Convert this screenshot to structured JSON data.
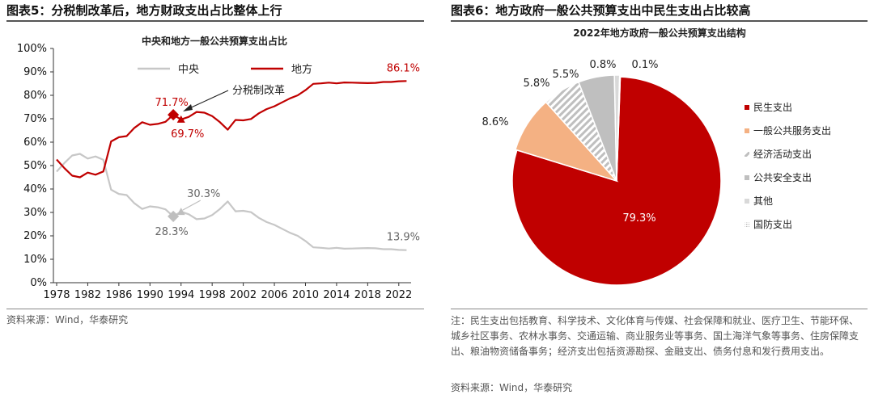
{
  "left": {
    "panel_title": "图表5：分税制改革后，地方财政支出占比整体上行",
    "source": "资料来源：Wind，华泰研究",
    "chart_data": {
      "type": "line",
      "title": "中央和地方一般公共预算支出占比",
      "x": [
        1978,
        1979,
        1980,
        1981,
        1982,
        1983,
        1984,
        1985,
        1986,
        1987,
        1988,
        1989,
        1990,
        1991,
        1992,
        1993,
        1994,
        1995,
        1996,
        1997,
        1998,
        1999,
        2000,
        2001,
        2002,
        2003,
        2004,
        2005,
        2006,
        2007,
        2008,
        2009,
        2010,
        2011,
        2012,
        2013,
        2014,
        2015,
        2016,
        2017,
        2018,
        2019,
        2020,
        2021,
        2022,
        2023
      ],
      "series": [
        {
          "name": "中央",
          "color": "#c7c7c7",
          "values": [
            47.4,
            51.1,
            54.3,
            55.0,
            53.0,
            53.9,
            52.5,
            39.7,
            37.9,
            37.4,
            33.9,
            31.5,
            32.6,
            32.2,
            31.3,
            28.3,
            30.3,
            29.2,
            27.1,
            27.4,
            28.9,
            31.5,
            34.7,
            30.5,
            30.7,
            30.1,
            27.7,
            25.9,
            24.7,
            23.0,
            21.3,
            20.0,
            17.8,
            15.1,
            14.9,
            14.6,
            14.9,
            14.5,
            14.6,
            14.7,
            14.8,
            14.7,
            14.3,
            14.3,
            14.0,
            13.9
          ]
        },
        {
          "name": "地方",
          "color": "#c00000",
          "values": [
            52.6,
            48.9,
            45.7,
            45.0,
            47.0,
            46.1,
            47.5,
            60.3,
            62.1,
            62.6,
            66.1,
            68.5,
            67.4,
            67.8,
            68.7,
            71.7,
            69.7,
            70.8,
            72.9,
            72.6,
            71.1,
            68.5,
            65.3,
            69.5,
            69.3,
            69.9,
            72.3,
            74.1,
            75.3,
            77.0,
            78.7,
            80.0,
            82.2,
            84.9,
            85.1,
            85.4,
            85.1,
            85.5,
            85.4,
            85.3,
            85.2,
            85.3,
            85.7,
            85.7,
            86.0,
            86.1
          ]
        }
      ],
      "ylim": [
        0,
        100
      ],
      "yticks": [
        0,
        10,
        20,
        30,
        40,
        50,
        60,
        70,
        80,
        90,
        100
      ],
      "ytick_labels": [
        "0%",
        "10%",
        "20%",
        "30%",
        "40%",
        "50%",
        "60%",
        "70%",
        "80%",
        "90%",
        "100%"
      ],
      "xticks": [
        1978,
        1982,
        1986,
        1990,
        1994,
        1998,
        2002,
        2006,
        2010,
        2014,
        2018,
        2022
      ],
      "legend_position": "top",
      "annotations": {
        "reform": "分税制改革",
        "local_1993": "71.7%",
        "local_1994": "69.7%",
        "central_1994": "30.3%",
        "central_1993": "28.3%",
        "local_2023": "86.1%",
        "central_2023": "13.9%"
      }
    }
  },
  "right": {
    "panel_title": "图表6：地方政府一般公共预算支出中民生支出占比较高",
    "note": "注：民生支出包括教育、科学技术、文化体育与传媒、社会保障和就业、医疗卫生、节能环保、城乡社区事务、农林水事务、交通运输、商业服务业等事务、国土海洋气象等事务、住房保障支出、粮油物资储备事务；经济支出包括资源勘探、金融支出、债务付息和发行费用支出。",
    "source": "资料来源：Wind，华泰研究",
    "chart_data": {
      "type": "pie",
      "title": "2022年地方政府一般公共预算支出结构",
      "slices": [
        {
          "name": "民生支出",
          "value": 79.3,
          "label": "79.3%",
          "color": "#c00000",
          "pattern": false
        },
        {
          "name": "一般公共服务支出",
          "value": 8.6,
          "label": "8.6%",
          "color": "#f4b183",
          "pattern": false
        },
        {
          "name": "经济活动支出",
          "value": 5.8,
          "label": "5.8%",
          "color": "#bfbfbf",
          "pattern": true
        },
        {
          "name": "公共安全支出",
          "value": 5.5,
          "label": "5.5%",
          "color": "#bfbfbf",
          "pattern": false
        },
        {
          "name": "其他",
          "value": 0.8,
          "label": "0.8%",
          "color": "#d9d9d9",
          "pattern": false
        },
        {
          "name": "国防支出",
          "value": 0.1,
          "label": "0.1%",
          "color": "#dddddd",
          "pattern": true
        }
      ],
      "legend_position": "right"
    }
  }
}
